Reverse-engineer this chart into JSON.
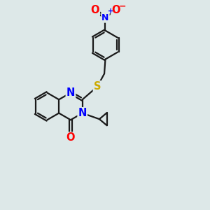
{
  "background_color": "#dde8e8",
  "bond_color": "#1a1a1a",
  "bond_width": 1.6,
  "atom_colors": {
    "N": "#0000ff",
    "O": "#ff0000",
    "S": "#ccaa00",
    "C": "#1a1a1a"
  },
  "font_size_atoms": 10.5,
  "font_size_charge": 8,
  "dbl_off": 0.055
}
